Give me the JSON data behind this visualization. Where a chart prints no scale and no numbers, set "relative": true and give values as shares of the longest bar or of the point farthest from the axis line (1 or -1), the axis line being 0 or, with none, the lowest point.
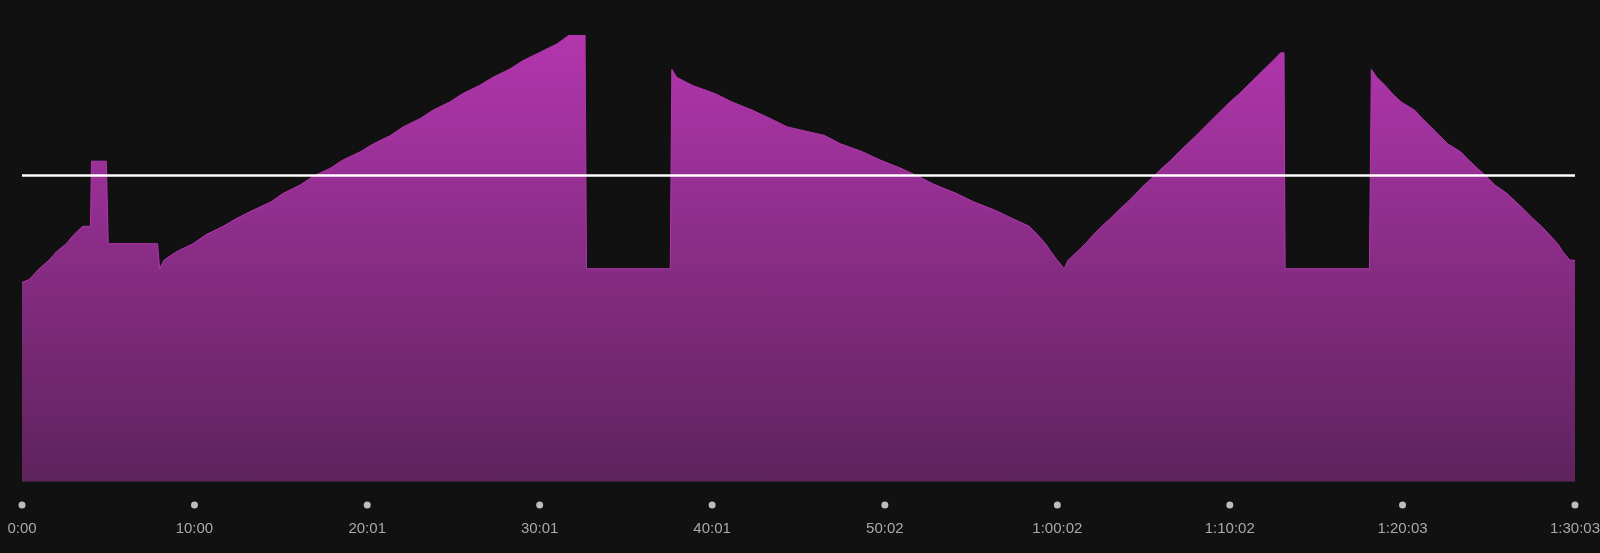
{
  "chart_data": {
    "type": "area",
    "relative": true,
    "tick_labels": "x",
    "x": [
      0,
      0.43,
      1.0,
      1.57,
      2.0,
      2.57,
      3.0,
      3.52,
      3.97,
      4.03,
      4.89,
      5.0,
      7.86,
      7.98,
      8.23,
      8.95,
      9.92,
      10.66,
      11.66,
      12.46,
      13.44,
      14.44,
      15.15,
      16.15,
      16.87,
      17.87,
      18.58,
      19.61,
      20.38,
      21.38,
      22.1,
      23.1,
      23.81,
      24.81,
      25.53,
      26.53,
      27.3,
      28.3,
      29.02,
      30.02,
      31.02,
      31.73,
      32.65,
      32.73,
      37.59,
      37.68,
      37.96,
      38.88,
      40.22,
      41.17,
      42.37,
      43.37,
      44.37,
      46.51,
      47.46,
      48.74,
      49.8,
      50.97,
      51.97,
      52.94,
      54.17,
      55.17,
      56.37,
      57.4,
      58.4,
      58.89,
      59.35,
      59.66,
      60.03,
      60.43,
      60.66,
      61.18,
      61.66,
      62.12,
      62.61,
      63.12,
      63.61,
      64.12,
      64.61,
      65.09,
      65.61,
      66.09,
      66.61,
      67.1,
      67.58,
      68.1,
      68.58,
      69.07,
      69.55,
      70.04,
      70.58,
      71.07,
      71.55,
      72.04,
      72.53,
      72.98,
      73.18,
      73.24,
      78.13,
      78.24,
      78.56,
      79.04,
      79.47,
      79.96,
      80.76,
      81.19,
      81.7,
      82.19,
      82.67,
      83.42,
      83.9,
      84.39,
      84.91,
      85.39,
      86.1,
      86.62,
      87.11,
      87.59,
      88.11,
      88.57,
      89.05,
      89.34,
      89.76,
      90.05
    ],
    "series": [
      {
        "color": "#b236ae",
        "values": [
          0.445,
          0.452,
          0.476,
          0.495,
          0.514,
          0.532,
          0.552,
          0.571,
          0.571,
          0.717,
          0.717,
          0.532,
          0.532,
          0.476,
          0.495,
          0.514,
          0.532,
          0.552,
          0.571,
          0.589,
          0.608,
          0.626,
          0.645,
          0.664,
          0.683,
          0.701,
          0.719,
          0.738,
          0.756,
          0.775,
          0.794,
          0.813,
          0.831,
          0.85,
          0.868,
          0.887,
          0.905,
          0.924,
          0.942,
          0.961,
          0.98,
          1,
          1,
          0.476,
          0.476,
          0.923,
          0.905,
          0.887,
          0.868,
          0.85,
          0.831,
          0.813,
          0.794,
          0.775,
          0.756,
          0.738,
          0.719,
          0.701,
          0.683,
          0.664,
          0.645,
          0.626,
          0.608,
          0.589,
          0.571,
          0.552,
          0.532,
          0.514,
          0.495,
          0.476,
          0.495,
          0.514,
          0.532,
          0.552,
          0.571,
          0.589,
          0.608,
          0.626,
          0.645,
          0.664,
          0.683,
          0.701,
          0.719,
          0.738,
          0.756,
          0.775,
          0.794,
          0.813,
          0.831,
          0.85,
          0.868,
          0.887,
          0.905,
          0.924,
          0.942,
          0.96,
          0.96,
          0.476,
          0.476,
          0.923,
          0.905,
          0.887,
          0.868,
          0.85,
          0.831,
          0.813,
          0.794,
          0.775,
          0.756,
          0.738,
          0.719,
          0.701,
          0.683,
          0.664,
          0.645,
          0.626,
          0.608,
          0.589,
          0.571,
          0.552,
          0.532,
          0.514,
          0.495,
          0.495
        ]
      }
    ],
    "xlim": [
      0,
      90.05
    ],
    "xticks": [
      {
        "value": 0,
        "label": "0:00"
      },
      {
        "value": 10,
        "label": "10:00"
      },
      {
        "value": 20.017,
        "label": "20:01"
      },
      {
        "value": 30.017,
        "label": "30:01"
      },
      {
        "value": 40.017,
        "label": "40:01"
      },
      {
        "value": 50.033,
        "label": "50:02"
      },
      {
        "value": 60.033,
        "label": "1:00:02"
      },
      {
        "value": 70.033,
        "label": "1:10:02"
      },
      {
        "value": 80.05,
        "label": "1:20:03"
      },
      {
        "value": 90.05,
        "label": "1:30:03"
      }
    ],
    "ref_lines": [
      {
        "axis": "y",
        "value": 0.685,
        "color": "#ffffff"
      }
    ]
  }
}
